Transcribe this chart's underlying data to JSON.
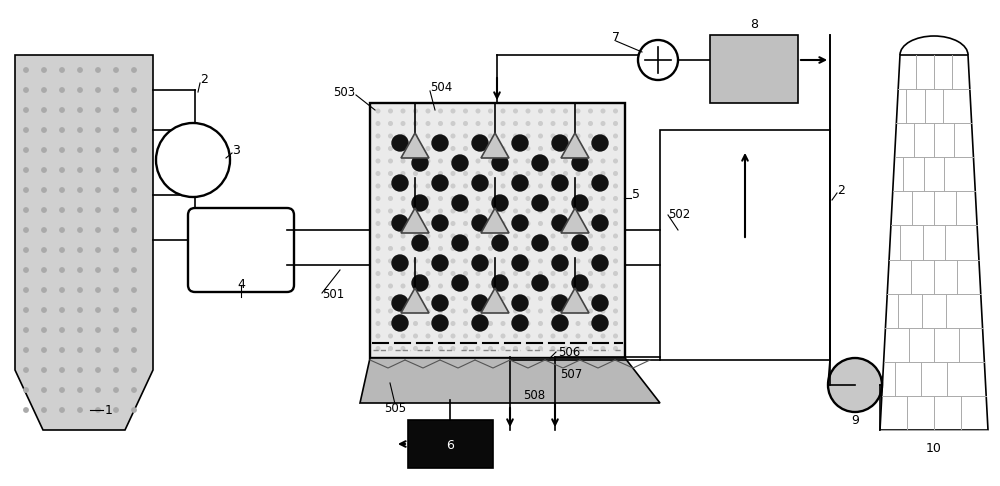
{
  "bg_color": "#ffffff",
  "line_color": "#000000",
  "gray_fill": "#cccccc",
  "dot_color": "#111111",
  "triangle_fill": "#c8c8c8",
  "triangle_edge": "#444444",
  "box8_fill": "#c0c0c0",
  "box6_fill": "#0a0a0a",
  "pipe_color": "#888888",
  "chimney_fill": "#f0f0f0",
  "chimney_brick": "#aaaaaa"
}
